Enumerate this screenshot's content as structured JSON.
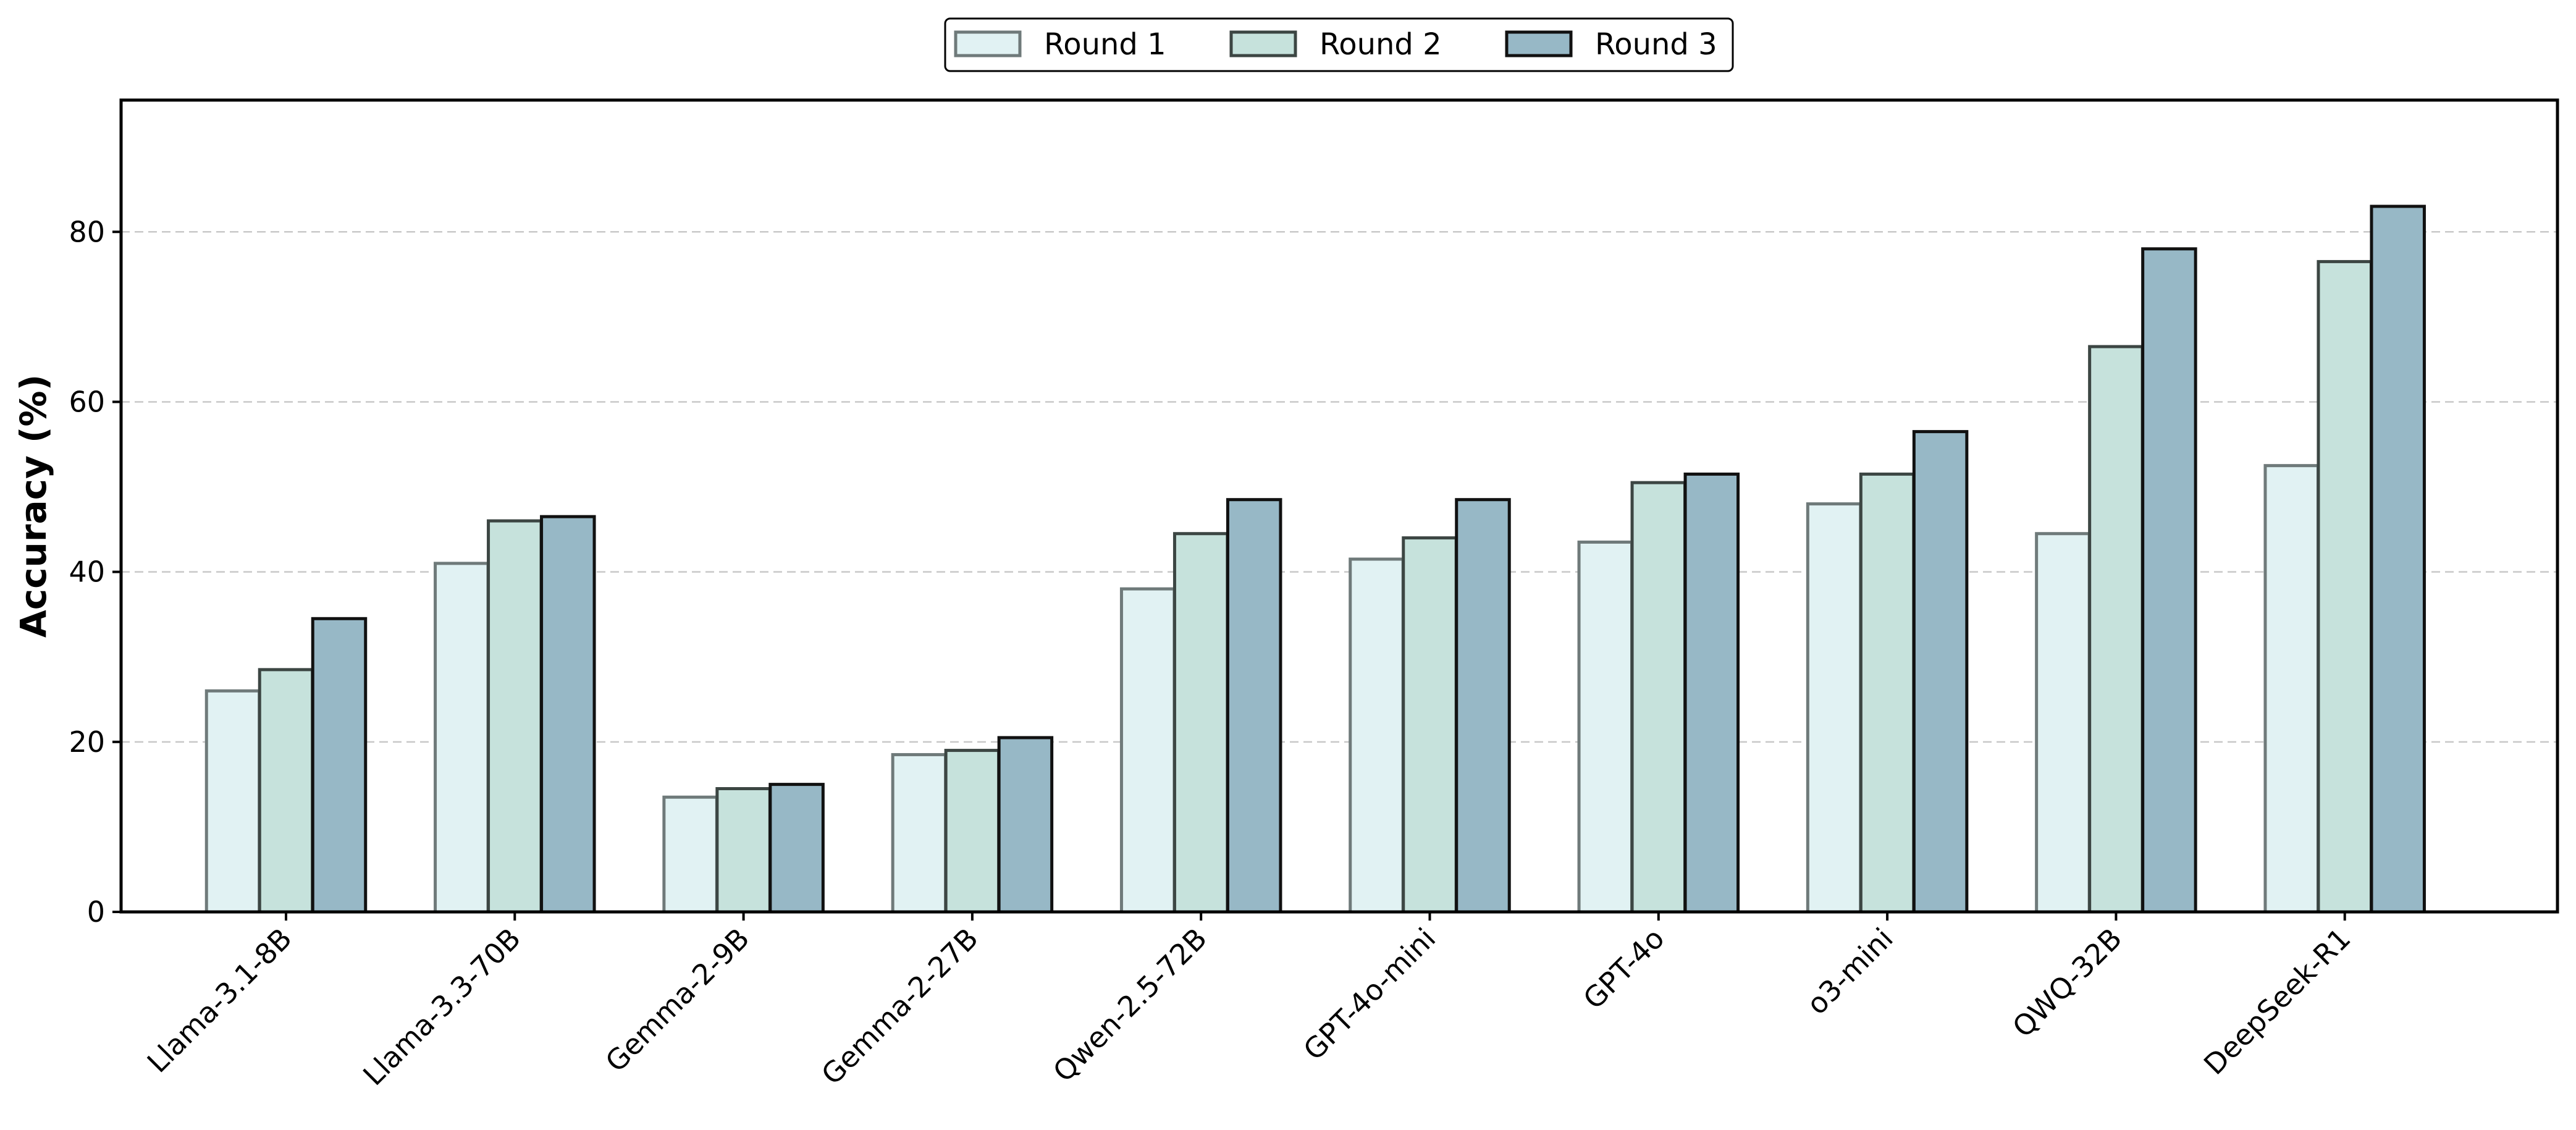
{
  "chart_data": {
    "type": "bar",
    "ylabel": "Accuracy (%)",
    "xlabel": "",
    "ylim": [
      0,
      95.5
    ],
    "yticks": [
      0,
      20,
      40,
      60,
      80
    ],
    "grid": "y-dashed",
    "legend_position": "top-center",
    "categories": [
      "Llama-3.1-8B",
      "Llama-3.3-70B",
      "Gemma-2-9B",
      "Gemma-2-27B",
      "Qwen-2.5-72B",
      "GPT-4o-mini",
      "GPT-4o",
      "o3-mini",
      "QWQ-32B",
      "DeepSeek-R1"
    ],
    "series": [
      {
        "name": "Round 1",
        "fill": "#e1f2f3",
        "edge": "#6f7a7a",
        "values": [
          26,
          41,
          13.5,
          18.5,
          38,
          41.5,
          43.5,
          48,
          44.5,
          52.5
        ]
      },
      {
        "name": "Round 2",
        "fill": "#c6e2dc",
        "edge": "#3c4643",
        "values": [
          28.5,
          46,
          14.5,
          19,
          44.5,
          44,
          50.5,
          51.5,
          66.5,
          76.5
        ]
      },
      {
        "name": "Round 3",
        "fill": "#97b8c6",
        "edge": "#111111",
        "values": [
          34.5,
          46.5,
          15,
          20.5,
          48.5,
          48.5,
          51.5,
          56.5,
          78,
          83
        ]
      }
    ]
  }
}
